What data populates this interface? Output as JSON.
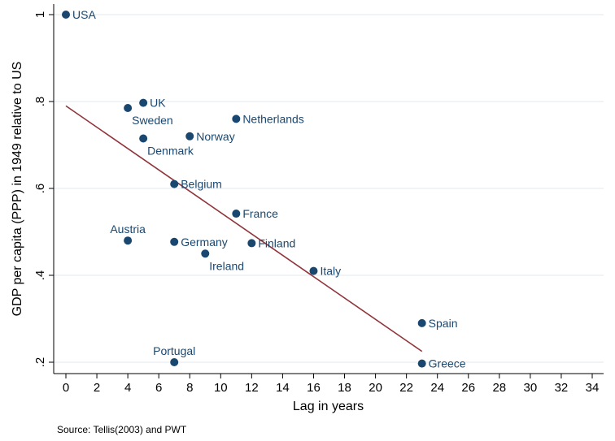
{
  "colors": {
    "marker": "#1a476f",
    "fit_line": "#90353b",
    "grid": "#e8eef2",
    "axis": "#000000"
  },
  "chart_data": {
    "type": "scatter",
    "xlabel": "Lag in years",
    "ylabel": "GDP per capita (PPP) in 1949 relative to US",
    "note": "Source: Tellis(2003) and PWT",
    "xlim": [
      0,
      34
    ],
    "ylim": [
      0.2,
      1.0
    ],
    "x_ticks": [
      0,
      2,
      4,
      6,
      8,
      10,
      12,
      14,
      16,
      18,
      20,
      22,
      24,
      26,
      28,
      30,
      32,
      34
    ],
    "y_ticks": [
      0.2,
      0.4,
      0.6,
      0.8,
      1.0
    ],
    "y_tick_labels": [
      ".2",
      ".4",
      ".6",
      ".8",
      "1"
    ],
    "grid": true,
    "points": [
      {
        "label": "USA",
        "x": 0,
        "y": 1.0,
        "label_pos": "right"
      },
      {
        "label": "UK",
        "x": 5,
        "y": 0.797,
        "label_pos": "right"
      },
      {
        "label": "Sweden",
        "x": 4,
        "y": 0.785,
        "label_pos": "below-right"
      },
      {
        "label": "Netherlands",
        "x": 11,
        "y": 0.76,
        "label_pos": "right"
      },
      {
        "label": "Norway",
        "x": 8,
        "y": 0.72,
        "label_pos": "right"
      },
      {
        "label": "Denmark",
        "x": 5,
        "y": 0.715,
        "label_pos": "below-right"
      },
      {
        "label": "Belgium",
        "x": 7,
        "y": 0.61,
        "label_pos": "right"
      },
      {
        "label": "France",
        "x": 11,
        "y": 0.542,
        "label_pos": "right"
      },
      {
        "label": "Austria",
        "x": 4,
        "y": 0.48,
        "label_pos": "above"
      },
      {
        "label": "Germany",
        "x": 7,
        "y": 0.477,
        "label_pos": "right"
      },
      {
        "label": "Finland",
        "x": 12,
        "y": 0.474,
        "label_pos": "right"
      },
      {
        "label": "Ireland",
        "x": 9,
        "y": 0.45,
        "label_pos": "below-right"
      },
      {
        "label": "Italy",
        "x": 16,
        "y": 0.41,
        "label_pos": "right"
      },
      {
        "label": "Spain",
        "x": 23,
        "y": 0.29,
        "label_pos": "right"
      },
      {
        "label": "Portugal",
        "x": 7,
        "y": 0.2,
        "label_pos": "above"
      },
      {
        "label": "Greece",
        "x": 23,
        "y": 0.197,
        "label_pos": "right"
      }
    ],
    "fit_line": {
      "x": [
        0,
        23
      ],
      "y": [
        0.79,
        0.225
      ]
    }
  }
}
